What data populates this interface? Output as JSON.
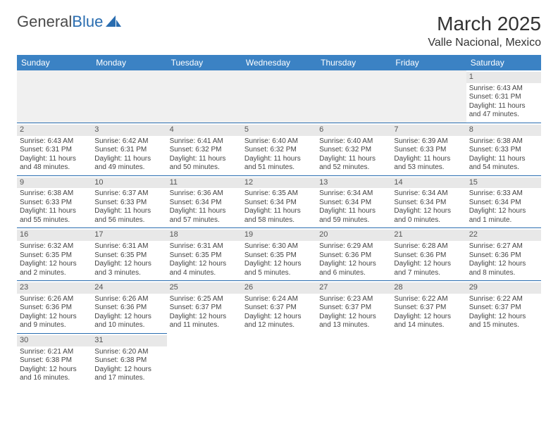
{
  "logo": {
    "part1": "General",
    "part2": "Blue"
  },
  "title": "March 2025",
  "location": "Valle Nacional, Mexico",
  "colors": {
    "headerBg": "#3b82c4",
    "headerText": "#ffffff",
    "dayBarBg": "#e8e8e8",
    "borderColor": "#2a6db0",
    "bodyText": "#444444",
    "logoGray": "#4a4a4a",
    "logoBlue": "#2a6db0"
  },
  "typography": {
    "titleFontSize": 28,
    "locationFontSize": 16,
    "headerFontSize": 12,
    "cellFontSize": 10
  },
  "daysOfWeek": [
    "Sunday",
    "Monday",
    "Tuesday",
    "Wednesday",
    "Thursday",
    "Friday",
    "Saturday"
  ],
  "weeks": [
    [
      {
        "empty": true
      },
      {
        "empty": true
      },
      {
        "empty": true
      },
      {
        "empty": true
      },
      {
        "empty": true
      },
      {
        "empty": true
      },
      {
        "num": "1",
        "sunrise": "Sunrise: 6:43 AM",
        "sunset": "Sunset: 6:31 PM",
        "daylight": "Daylight: 11 hours and 47 minutes."
      }
    ],
    [
      {
        "num": "2",
        "sunrise": "Sunrise: 6:43 AM",
        "sunset": "Sunset: 6:31 PM",
        "daylight": "Daylight: 11 hours and 48 minutes."
      },
      {
        "num": "3",
        "sunrise": "Sunrise: 6:42 AM",
        "sunset": "Sunset: 6:31 PM",
        "daylight": "Daylight: 11 hours and 49 minutes."
      },
      {
        "num": "4",
        "sunrise": "Sunrise: 6:41 AM",
        "sunset": "Sunset: 6:32 PM",
        "daylight": "Daylight: 11 hours and 50 minutes."
      },
      {
        "num": "5",
        "sunrise": "Sunrise: 6:40 AM",
        "sunset": "Sunset: 6:32 PM",
        "daylight": "Daylight: 11 hours and 51 minutes."
      },
      {
        "num": "6",
        "sunrise": "Sunrise: 6:40 AM",
        "sunset": "Sunset: 6:32 PM",
        "daylight": "Daylight: 11 hours and 52 minutes."
      },
      {
        "num": "7",
        "sunrise": "Sunrise: 6:39 AM",
        "sunset": "Sunset: 6:33 PM",
        "daylight": "Daylight: 11 hours and 53 minutes."
      },
      {
        "num": "8",
        "sunrise": "Sunrise: 6:38 AM",
        "sunset": "Sunset: 6:33 PM",
        "daylight": "Daylight: 11 hours and 54 minutes."
      }
    ],
    [
      {
        "num": "9",
        "sunrise": "Sunrise: 6:38 AM",
        "sunset": "Sunset: 6:33 PM",
        "daylight": "Daylight: 11 hours and 55 minutes."
      },
      {
        "num": "10",
        "sunrise": "Sunrise: 6:37 AM",
        "sunset": "Sunset: 6:33 PM",
        "daylight": "Daylight: 11 hours and 56 minutes."
      },
      {
        "num": "11",
        "sunrise": "Sunrise: 6:36 AM",
        "sunset": "Sunset: 6:34 PM",
        "daylight": "Daylight: 11 hours and 57 minutes."
      },
      {
        "num": "12",
        "sunrise": "Sunrise: 6:35 AM",
        "sunset": "Sunset: 6:34 PM",
        "daylight": "Daylight: 11 hours and 58 minutes."
      },
      {
        "num": "13",
        "sunrise": "Sunrise: 6:34 AM",
        "sunset": "Sunset: 6:34 PM",
        "daylight": "Daylight: 11 hours and 59 minutes."
      },
      {
        "num": "14",
        "sunrise": "Sunrise: 6:34 AM",
        "sunset": "Sunset: 6:34 PM",
        "daylight": "Daylight: 12 hours and 0 minutes."
      },
      {
        "num": "15",
        "sunrise": "Sunrise: 6:33 AM",
        "sunset": "Sunset: 6:34 PM",
        "daylight": "Daylight: 12 hours and 1 minute."
      }
    ],
    [
      {
        "num": "16",
        "sunrise": "Sunrise: 6:32 AM",
        "sunset": "Sunset: 6:35 PM",
        "daylight": "Daylight: 12 hours and 2 minutes."
      },
      {
        "num": "17",
        "sunrise": "Sunrise: 6:31 AM",
        "sunset": "Sunset: 6:35 PM",
        "daylight": "Daylight: 12 hours and 3 minutes."
      },
      {
        "num": "18",
        "sunrise": "Sunrise: 6:31 AM",
        "sunset": "Sunset: 6:35 PM",
        "daylight": "Daylight: 12 hours and 4 minutes."
      },
      {
        "num": "19",
        "sunrise": "Sunrise: 6:30 AM",
        "sunset": "Sunset: 6:35 PM",
        "daylight": "Daylight: 12 hours and 5 minutes."
      },
      {
        "num": "20",
        "sunrise": "Sunrise: 6:29 AM",
        "sunset": "Sunset: 6:36 PM",
        "daylight": "Daylight: 12 hours and 6 minutes."
      },
      {
        "num": "21",
        "sunrise": "Sunrise: 6:28 AM",
        "sunset": "Sunset: 6:36 PM",
        "daylight": "Daylight: 12 hours and 7 minutes."
      },
      {
        "num": "22",
        "sunrise": "Sunrise: 6:27 AM",
        "sunset": "Sunset: 6:36 PM",
        "daylight": "Daylight: 12 hours and 8 minutes."
      }
    ],
    [
      {
        "num": "23",
        "sunrise": "Sunrise: 6:26 AM",
        "sunset": "Sunset: 6:36 PM",
        "daylight": "Daylight: 12 hours and 9 minutes."
      },
      {
        "num": "24",
        "sunrise": "Sunrise: 6:26 AM",
        "sunset": "Sunset: 6:36 PM",
        "daylight": "Daylight: 12 hours and 10 minutes."
      },
      {
        "num": "25",
        "sunrise": "Sunrise: 6:25 AM",
        "sunset": "Sunset: 6:37 PM",
        "daylight": "Daylight: 12 hours and 11 minutes."
      },
      {
        "num": "26",
        "sunrise": "Sunrise: 6:24 AM",
        "sunset": "Sunset: 6:37 PM",
        "daylight": "Daylight: 12 hours and 12 minutes."
      },
      {
        "num": "27",
        "sunrise": "Sunrise: 6:23 AM",
        "sunset": "Sunset: 6:37 PM",
        "daylight": "Daylight: 12 hours and 13 minutes."
      },
      {
        "num": "28",
        "sunrise": "Sunrise: 6:22 AM",
        "sunset": "Sunset: 6:37 PM",
        "daylight": "Daylight: 12 hours and 14 minutes."
      },
      {
        "num": "29",
        "sunrise": "Sunrise: 6:22 AM",
        "sunset": "Sunset: 6:37 PM",
        "daylight": "Daylight: 12 hours and 15 minutes."
      }
    ],
    [
      {
        "num": "30",
        "sunrise": "Sunrise: 6:21 AM",
        "sunset": "Sunset: 6:38 PM",
        "daylight": "Daylight: 12 hours and 16 minutes."
      },
      {
        "num": "31",
        "sunrise": "Sunrise: 6:20 AM",
        "sunset": "Sunset: 6:38 PM",
        "daylight": "Daylight: 12 hours and 17 minutes."
      },
      {
        "trailing": true
      },
      {
        "trailing": true
      },
      {
        "trailing": true
      },
      {
        "trailing": true
      },
      {
        "trailing": true
      }
    ]
  ]
}
